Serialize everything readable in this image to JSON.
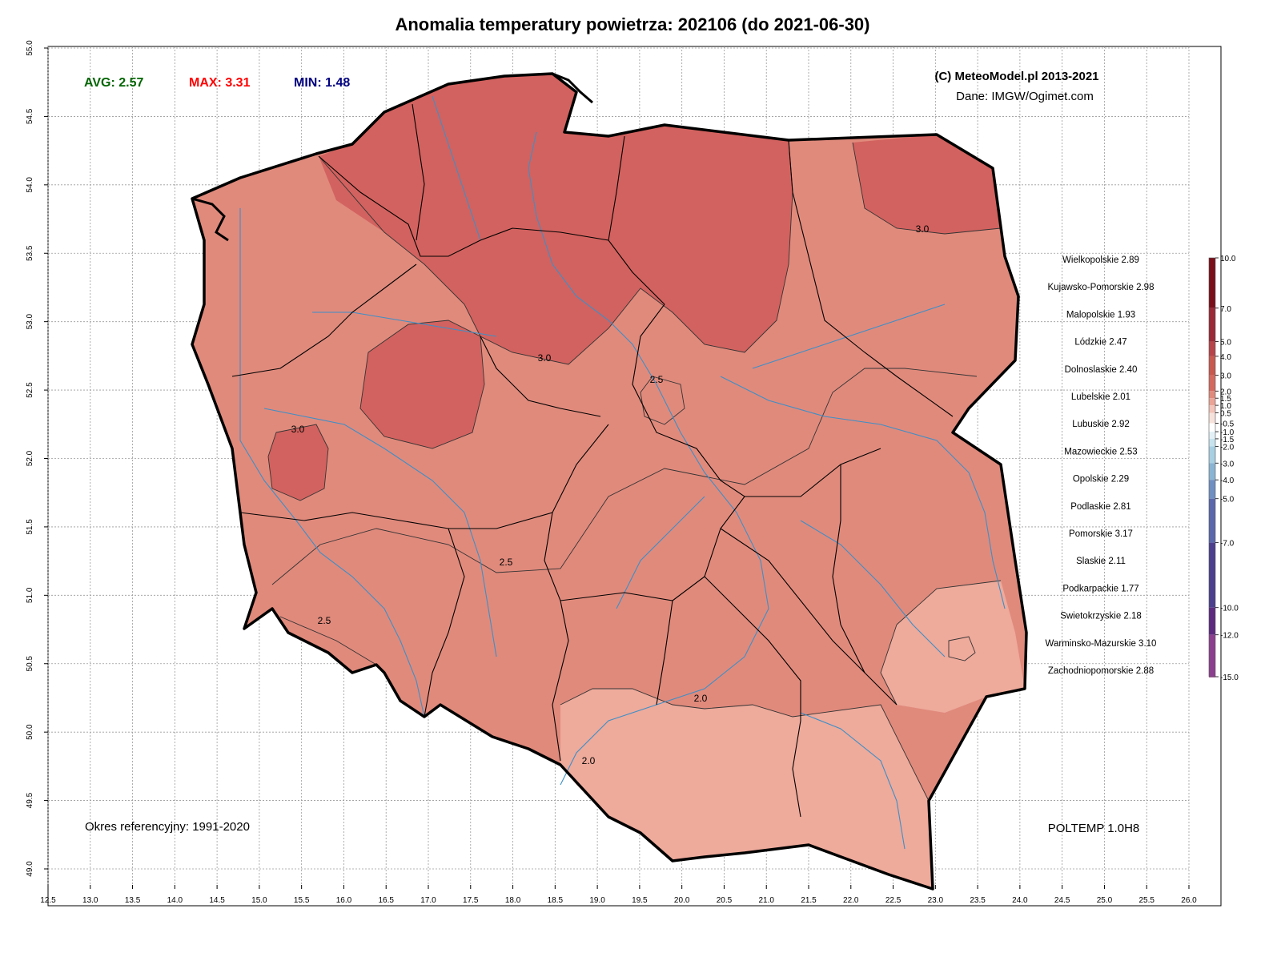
{
  "title": "Anomalia temperatury powietrza:  202106 (do 2021-06-30)",
  "stats": {
    "avg": "AVG: 2.57",
    "max": "MAX: 3.31",
    "min": "MIN: 1.48"
  },
  "copyright": "(C) MeteoModel.pl 2013-2021",
  "source": "Dane: IMGW/Ogimet.com",
  "reference_period": "Okres referencyjny: 1991-2020",
  "model": "POLTEMP 1.0H8",
  "x_ticks": [
    "12.5",
    "13.0",
    "13.5",
    "14.0",
    "14.5",
    "15.0",
    "15.5",
    "16.0",
    "16.5",
    "17.0",
    "17.5",
    "18.0",
    "18.5",
    "19.0",
    "19.5",
    "20.0",
    "20.5",
    "21.0",
    "21.5",
    "22.0",
    "22.5",
    "23.0",
    "23.5",
    "24.0",
    "24.5",
    "25.0",
    "25.5",
    "26.0"
  ],
  "y_ticks": [
    "49.0",
    "49.5",
    "50.0",
    "50.5",
    "51.0",
    "51.5",
    "52.0",
    "52.5",
    "53.0",
    "53.5",
    "54.0",
    "54.5",
    "55.0"
  ],
  "contour_labels": [
    "3.0",
    "3.0",
    "3.0",
    "2.5",
    "2.5",
    "2.5",
    "2.0",
    "2.0"
  ],
  "regions": [
    "Wielkopolskie 2.89",
    "Kujawsko-Pomorskie 2.98",
    "Malopolskie 1.93",
    "Lódzkie 2.47",
    "Dolnoslaskie 2.40",
    "Lubelskie 2.01",
    "Lubuskie 2.92",
    "Mazowieckie 2.53",
    "Opolskie 2.29",
    "Podlaskie 2.81",
    "Pomorskie 3.17",
    "Slaskie 2.11",
    "Podkarpackie 1.77",
    "Swietokrzyskie 2.18",
    "Warminsko-Mazurskie 3.10",
    "Zachodniopomorskie 2.88"
  ],
  "legend": {
    "labels": [
      "10.0",
      "7.0",
      "5.0",
      "4.0",
      "3.0",
      "2.0",
      "1.5",
      "1.0",
      "0.5",
      "-0.5",
      "-1.0",
      "-1.5",
      "-2.0",
      "-3.0",
      "-4.0",
      "-5.0",
      "-7.0",
      "-10.0",
      "-12.0",
      "-15.0"
    ],
    "colors": [
      "#7a0f1a",
      "#9a2a36",
      "#b64448",
      "#c8594f",
      "#d46a5f",
      "#e08a7c",
      "#eba496",
      "#f3c4b9",
      "#f7e2db",
      "#ffffff",
      "#e3f1f6",
      "#c7e3ee",
      "#a8cfe2",
      "#8ab4d3",
      "#6f8fc2",
      "#5a68ab",
      "#4c3f8e",
      "#5e2a80",
      "#8c3f8f",
      "#c66cb2"
    ]
  },
  "colors": {
    "avg": "#006400",
    "max": "#ff0000",
    "min": "#000080",
    "anomaly_above_3": "#d2625f",
    "anomaly_2_5_to_3": "#e08a7c",
    "anomaly_below_2": "#eeaa9b",
    "river": "#3d8fc7"
  }
}
